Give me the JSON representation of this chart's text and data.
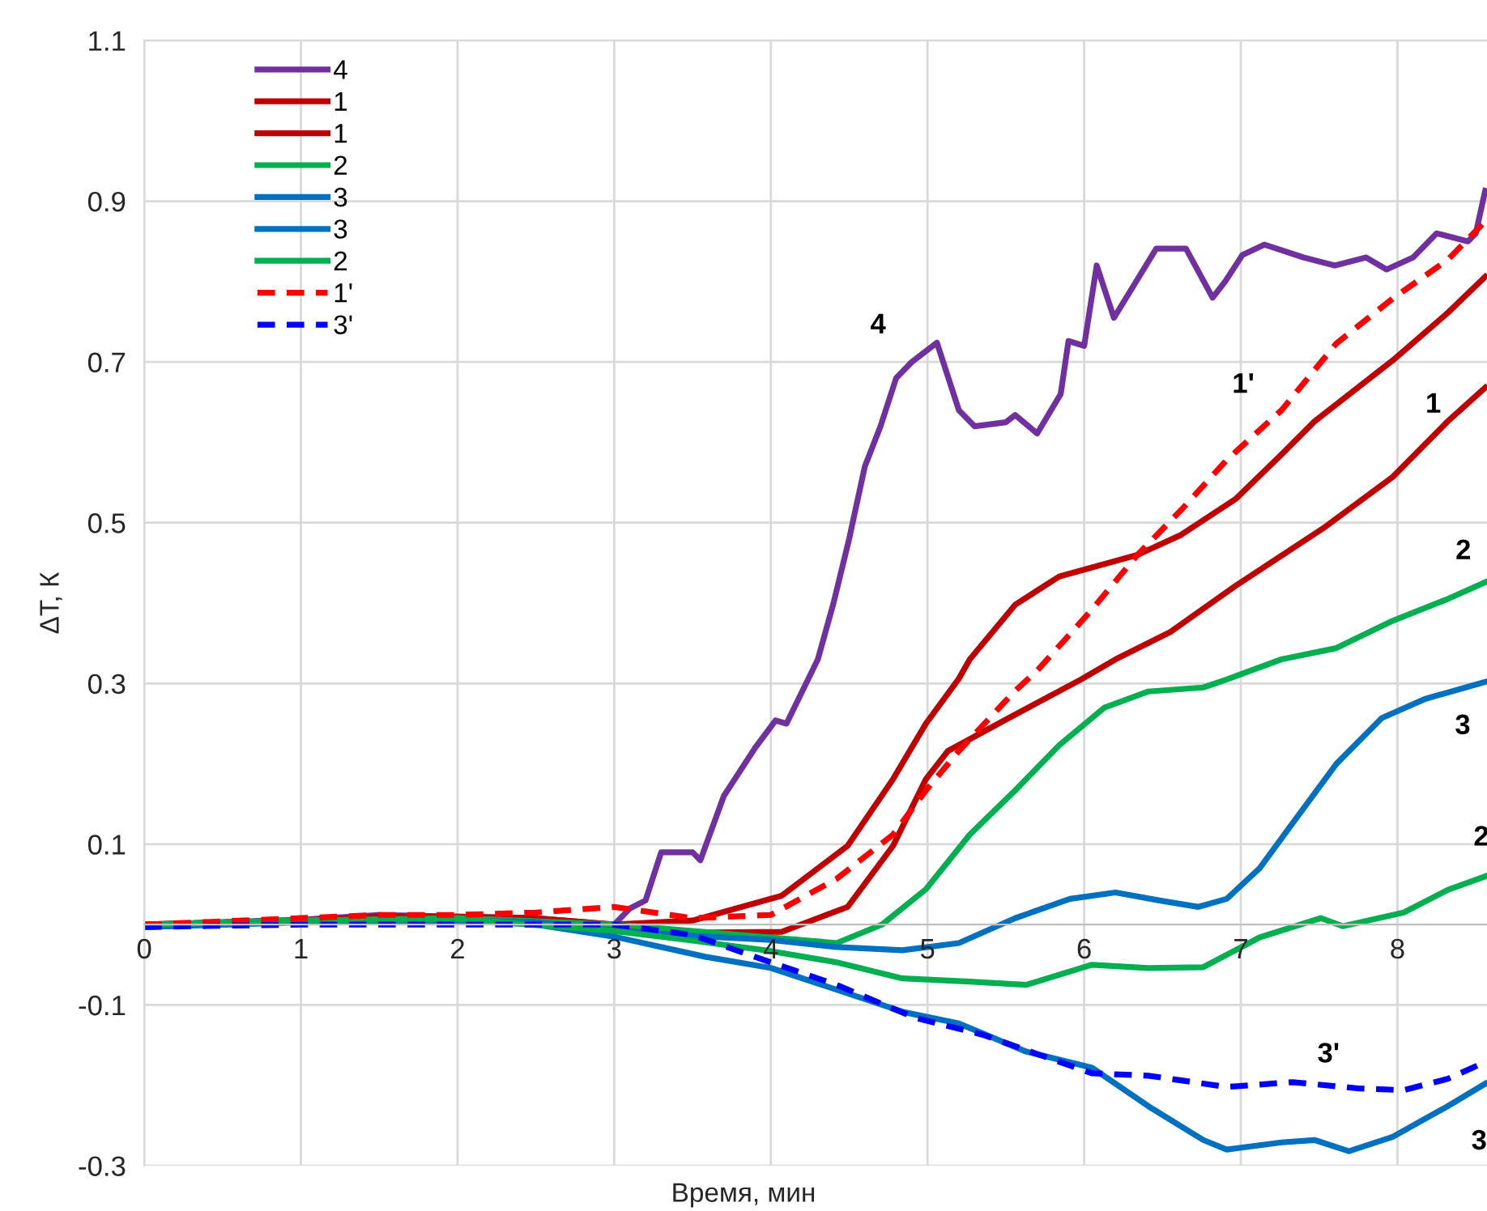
{
  "chart_data": {
    "type": "line",
    "xlabel": "Время, мин",
    "ylabel": "ΔT, К",
    "xlim": [
      0,
      8.6
    ],
    "ylim": [
      -0.3,
      1.1
    ],
    "xticks": [
      0,
      1,
      2,
      3,
      4,
      5,
      6,
      7,
      8
    ],
    "yticks": [
      -0.3,
      -0.1,
      0.1,
      0.3,
      0.5,
      0.7,
      0.9,
      1.1
    ],
    "grid": true,
    "legend": "top left",
    "marker": "none",
    "series": [
      {
        "name": "4",
        "color": "#7030a0",
        "line_style": "solid",
        "x": [
          0,
          0.5,
          1,
          1.5,
          2,
          2.5,
          3,
          3.1,
          3.2,
          3.3,
          3.5,
          3.55,
          3.7,
          3.9,
          4.03,
          4.1,
          4.3,
          4.4,
          4.5,
          4.6,
          4.7,
          4.8,
          4.9,
          5.06,
          5.1,
          5.2,
          5.3,
          5.5,
          5.56,
          5.7,
          5.85,
          5.9,
          6.0,
          6.08,
          6.19,
          6.3,
          6.46,
          6.65,
          6.82,
          6.9,
          7.01,
          7.15,
          7.4,
          7.6,
          7.8,
          7.93,
          8.1,
          8.25,
          8.45,
          8.5,
          8.56
        ],
        "values": [
          0,
          0.003,
          0.006,
          0.012,
          0.01,
          0.008,
          0,
          0.02,
          0.03,
          0.09,
          0.09,
          0.08,
          0.16,
          0.22,
          0.254,
          0.25,
          0.33,
          0.4,
          0.48,
          0.57,
          0.62,
          0.68,
          0.7,
          0.724,
          0.7,
          0.64,
          0.62,
          0.625,
          0.634,
          0.611,
          0.66,
          0.726,
          0.72,
          0.82,
          0.755,
          0.79,
          0.841,
          0.841,
          0.78,
          0.8,
          0.833,
          0.846,
          0.83,
          0.82,
          0.83,
          0.815,
          0.83,
          0.86,
          0.85,
          0.86,
          0.913
        ]
      },
      {
        "name": "1",
        "color": "#c00000",
        "line_style": "solid",
        "x": [
          0,
          1,
          1.5,
          2,
          2.5,
          3,
          3.5,
          4.07,
          4.49,
          4.78,
          4.99,
          5.2,
          5.27,
          5.56,
          5.84,
          6.34,
          6.62,
          6.97,
          7.26,
          7.47,
          7.97,
          8.32,
          8.56
        ],
        "values": [
          0,
          0.005,
          0.01,
          0.01,
          0.008,
          0,
          0.005,
          0.036,
          0.098,
          0.181,
          0.25,
          0.306,
          0.33,
          0.398,
          0.433,
          0.46,
          0.485,
          0.53,
          0.585,
          0.626,
          0.702,
          0.761,
          0.806
        ]
      },
      {
        "name": "1",
        "color": "#c00000",
        "line_style": "solid",
        "x": [
          0,
          1,
          2,
          3,
          3.5,
          4.07,
          4.49,
          4.78,
          4.99,
          5.13,
          5.49,
          5.98,
          6.2,
          6.55,
          6.97,
          7.54,
          7.97,
          8.32,
          8.56
        ],
        "values": [
          0,
          0.005,
          0.008,
          -0.003,
          -0.01,
          -0.009,
          0.022,
          0.098,
          0.181,
          0.216,
          0.254,
          0.305,
          0.33,
          0.364,
          0.422,
          0.495,
          0.557,
          0.626,
          0.668
        ]
      },
      {
        "name": "2",
        "color": "#00b050",
        "line_style": "solid",
        "x": [
          0,
          1,
          2,
          3,
          3.5,
          4.0,
          4.42,
          4.71,
          4.99,
          5.27,
          5.56,
          5.84,
          6.13,
          6.41,
          6.76,
          6.91,
          7.26,
          7.61,
          7.97,
          8.32,
          8.56
        ],
        "values": [
          0,
          0.005,
          0.008,
          0,
          -0.008,
          -0.016,
          -0.023,
          0,
          0.044,
          0.112,
          0.167,
          0.223,
          0.27,
          0.29,
          0.295,
          0.305,
          0.33,
          0.344,
          0.378,
          0.405,
          0.426
        ]
      },
      {
        "name": "3",
        "color": "#0070c0",
        "line_style": "solid",
        "x": [
          0,
          1,
          2,
          2.5,
          3,
          3.5,
          4.0,
          4.42,
          4.84,
          5.2,
          5.56,
          5.91,
          6.2,
          6.48,
          6.73,
          6.91,
          7.12,
          7.33,
          7.61,
          7.9,
          8.18,
          8.56
        ],
        "values": [
          -0.003,
          0.003,
          0.005,
          0.003,
          -0.008,
          -0.014,
          -0.019,
          -0.028,
          -0.032,
          -0.023,
          0.008,
          0.032,
          0.04,
          0.03,
          0.022,
          0.032,
          0.07,
          0.126,
          0.2,
          0.257,
          0.281,
          0.302
        ]
      },
      {
        "name": "3",
        "color": "#0070c0",
        "line_style": "solid",
        "x": [
          0,
          1,
          2,
          2.5,
          3,
          3.58,
          4.0,
          4.42,
          4.85,
          5.2,
          5.63,
          6.05,
          6.41,
          6.76,
          6.91,
          7.26,
          7.47,
          7.69,
          7.97,
          8.32,
          8.56
        ],
        "values": [
          -0.003,
          0.003,
          0.005,
          0.0,
          -0.015,
          -0.04,
          -0.054,
          -0.081,
          -0.109,
          -0.123,
          -0.158,
          -0.178,
          -0.226,
          -0.268,
          -0.28,
          -0.271,
          -0.268,
          -0.282,
          -0.264,
          -0.226,
          -0.198
        ]
      },
      {
        "name": "2",
        "color": "#00b050",
        "line_style": "solid",
        "x": [
          0,
          1,
          2,
          3,
          3.5,
          4.0,
          4.42,
          4.84,
          5.27,
          5.63,
          6.05,
          6.41,
          6.76,
          7.12,
          7.51,
          7.65,
          8.04,
          8.32,
          8.56
        ],
        "values": [
          0,
          0.005,
          0.007,
          -0.008,
          -0.02,
          -0.033,
          -0.047,
          -0.067,
          -0.071,
          -0.075,
          -0.05,
          -0.054,
          -0.053,
          -0.016,
          0.008,
          -0.002,
          0.015,
          0.043,
          0.06
        ]
      },
      {
        "name": "1'",
        "color": "#ff0000",
        "line_style": "dashed",
        "x": [
          0,
          1,
          1.5,
          2,
          2.5,
          3.0,
          3.5,
          4.0,
          4.42,
          4.78,
          4.99,
          5.2,
          5.56,
          5.7,
          6.05,
          6.34,
          6.62,
          6.91,
          7.26,
          7.61,
          7.97,
          8.32,
          8.56
        ],
        "values": [
          0,
          0.008,
          0.012,
          0.012,
          0.015,
          0.022,
          0.008,
          0.012,
          0.057,
          0.112,
          0.167,
          0.216,
          0.291,
          0.316,
          0.392,
          0.46,
          0.516,
          0.578,
          0.64,
          0.723,
          0.779,
          0.827,
          0.875
        ]
      },
      {
        "name": "3'",
        "color": "#0000ff",
        "line_style": "dashed",
        "x": [
          0,
          1,
          2,
          3.0,
          3.5,
          4.0,
          4.42,
          4.92,
          5.35,
          5.7,
          6.05,
          6.41,
          6.91,
          7.33,
          7.76,
          8.04,
          8.32,
          8.56
        ],
        "values": [
          -0.003,
          0,
          0,
          0,
          -0.013,
          -0.047,
          -0.075,
          -0.116,
          -0.137,
          -0.161,
          -0.185,
          -0.188,
          -0.202,
          -0.196,
          -0.204,
          -0.206,
          -0.192,
          -0.171
        ]
      }
    ],
    "annotations": [
      {
        "text": "4",
        "x": 4.9,
        "y": 0.7
      },
      {
        "text": "1'",
        "x": 7.26,
        "y": 0.64
      },
      {
        "text": "1",
        "x": 7.97,
        "y": 0.702
      },
      {
        "text": "2",
        "x": 8.32,
        "y": 0.405
      },
      {
        "text": "3",
        "x": 8.56,
        "y": 0.302
      },
      {
        "text": "2",
        "x": 8.32,
        "y": 0.043
      },
      {
        "text": "3'",
        "x": 7.33,
        "y": -0.196
      },
      {
        "text": "3",
        "x": 8.32,
        "y": -0.226
      }
    ]
  }
}
